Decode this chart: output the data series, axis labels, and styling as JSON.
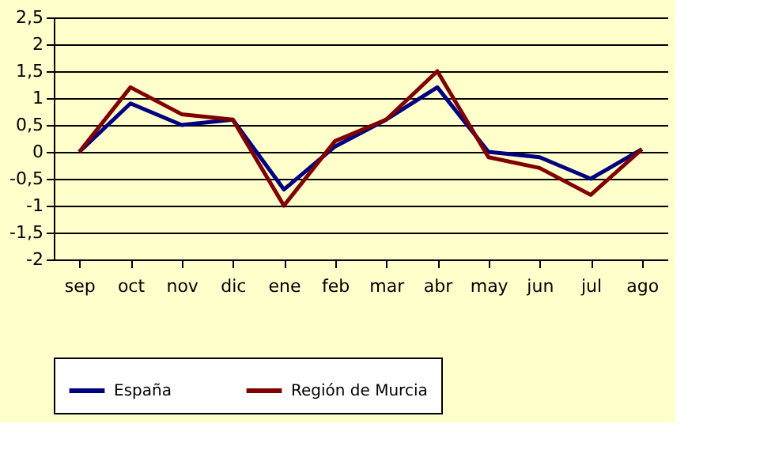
{
  "chart_data": {
    "type": "line",
    "categories": [
      "sep",
      "oct",
      "nov",
      "dic",
      "ene",
      "feb",
      "mar",
      "abr",
      "may",
      "jun",
      "jul",
      "ago"
    ],
    "series": [
      {
        "name": "España",
        "color": "#000080",
        "values": [
          0,
          0.9,
          0.5,
          0.6,
          -0.7,
          0.1,
          0.6,
          1.2,
          0,
          -0.1,
          -0.5,
          0.05
        ]
      },
      {
        "name": "Región de Murcia",
        "color": "#800000",
        "values": [
          0,
          1.2,
          0.7,
          0.6,
          -1.0,
          0.2,
          0.6,
          1.5,
          -0.1,
          -0.3,
          -0.8,
          0.05
        ]
      }
    ],
    "ylim": [
      -2,
      2.5
    ],
    "yticks": [
      -2,
      {
        "value": -1.5,
        "label": "-1,5"
      },
      -1,
      {
        "value": -0.5,
        "label": "-0,5"
      },
      0,
      {
        "value": 0.5,
        "label": "0,5"
      },
      1,
      {
        "value": 1.5,
        "label": "1,5"
      },
      2,
      {
        "value": 2.5,
        "label": "2,5"
      }
    ],
    "grid": "y",
    "legend": "bottom",
    "marker": "none",
    "line_style": "solid"
  }
}
